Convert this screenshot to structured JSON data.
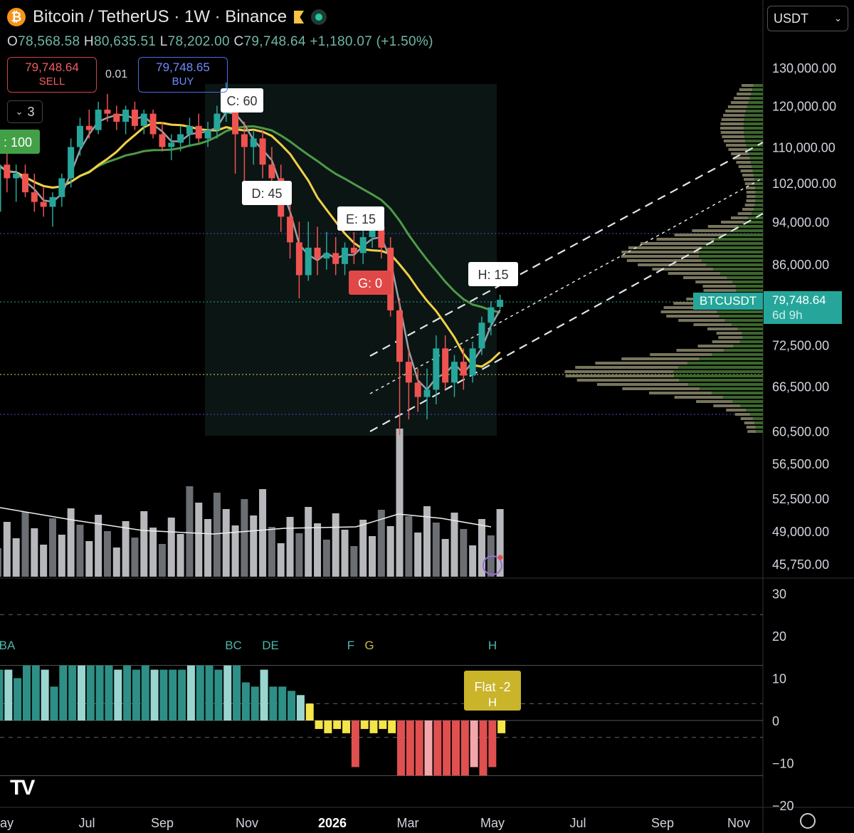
{
  "header": {
    "title": "Bitcoin / TetherUS · 1W · Binance",
    "coin_glyph": "₿",
    "ohlc": {
      "o_label": "O",
      "o": "78,568.58",
      "h_label": "H",
      "h": "80,635.51",
      "l_label": "L",
      "l": "78,202.00",
      "c_label": "C",
      "c": "79,748.64",
      "change": "+1,180.07 (+1.50%)"
    }
  },
  "trade": {
    "sell_price": "79,748.64",
    "sell_label": "SELL",
    "qty": "0.01",
    "buy_price": "79,748.65",
    "buy_label": "BUY"
  },
  "indicator_count": "3",
  "currency": "USDT",
  "symbol_tag": "BTCUSDT",
  "price_tag": {
    "price": "79,748.64",
    "countdown": "6d 9h"
  },
  "brand_logo": "TV",
  "colors": {
    "up": "#26a69a",
    "down": "#ef5350",
    "ma_fast": "#9aa0a6",
    "ma_yellow": "#f0d048",
    "ma_green": "#4e9a48",
    "accent": "#26a69a"
  },
  "chart_data": {
    "type": "candlestick",
    "interval": "1W",
    "currency": "USDT",
    "price_axis": {
      "scale": "log",
      "ticks": [
        130000,
        120000,
        110000,
        102000,
        94000,
        86000,
        79748.64,
        72500,
        66500,
        60500,
        56500,
        52500,
        49000,
        45750
      ],
      "tick_labels": [
        "130,000.00",
        "120,000.00",
        "110,000.00",
        "102,000.00",
        "94,000.00",
        "86,000.00",
        "79,748.64",
        "72,500.00",
        "66,500.00",
        "60,500.00",
        "56,500.00",
        "52,500.00",
        "49,000.00",
        "45,750.00"
      ]
    },
    "time_axis": {
      "labels": [
        "ay",
        "Jul",
        "Sep",
        "Nov",
        "2026",
        "Mar",
        "May",
        "Jul",
        "Sep",
        "Nov"
      ],
      "bold": [
        "2026"
      ]
    },
    "candles": [
      [
        96000,
        110000,
        93000,
        106000
      ],
      [
        106000,
        109000,
        100000,
        103000
      ],
      [
        103000,
        106000,
        98000,
        104000
      ],
      [
        104000,
        106000,
        99000,
        100000
      ],
      [
        100000,
        104000,
        96000,
        98000
      ],
      [
        98000,
        101000,
        95000,
        97000
      ],
      [
        97000,
        100000,
        93000,
        99000
      ],
      [
        99000,
        104000,
        97000,
        103000
      ],
      [
        103000,
        112000,
        101000,
        110000
      ],
      [
        110000,
        117000,
        108000,
        115000
      ],
      [
        115000,
        119000,
        112000,
        114000
      ],
      [
        114000,
        121000,
        113000,
        119000
      ],
      [
        119000,
        123000,
        116000,
        118000
      ],
      [
        118000,
        120000,
        114000,
        116000
      ],
      [
        116000,
        120000,
        113000,
        119000
      ],
      [
        119000,
        121000,
        114000,
        115000
      ],
      [
        115000,
        119000,
        113000,
        118000
      ],
      [
        118000,
        119000,
        112000,
        113000
      ],
      [
        113000,
        116000,
        109000,
        110000
      ],
      [
        110000,
        113000,
        107000,
        111000
      ],
      [
        111000,
        115000,
        109000,
        113000
      ],
      [
        113000,
        117000,
        110000,
        115000
      ],
      [
        115000,
        118000,
        111000,
        112000
      ],
      [
        112000,
        116000,
        110000,
        114000
      ],
      [
        114000,
        120000,
        112000,
        118000
      ],
      [
        118000,
        126000,
        116000,
        123000
      ],
      [
        123000,
        124000,
        104000,
        113000
      ],
      [
        113000,
        116000,
        101000,
        110000
      ],
      [
        110000,
        114000,
        106000,
        112000
      ],
      [
        112000,
        114000,
        103000,
        106000
      ],
      [
        106000,
        110000,
        99000,
        103000
      ],
      [
        103000,
        106000,
        92000,
        95000
      ],
      [
        95000,
        99000,
        87000,
        90000
      ],
      [
        90000,
        94000,
        80000,
        84000
      ],
      [
        84000,
        94000,
        83000,
        89000
      ],
      [
        89000,
        93000,
        84000,
        87000
      ],
      [
        87000,
        92000,
        85000,
        88000
      ],
      [
        88000,
        91000,
        84000,
        86000
      ],
      [
        86000,
        90000,
        84000,
        89000
      ],
      [
        89000,
        92000,
        86000,
        88000
      ],
      [
        88000,
        94000,
        86000,
        91000
      ],
      [
        91000,
        97000,
        89000,
        93000
      ],
      [
        93000,
        96000,
        87000,
        89000
      ],
      [
        89000,
        91000,
        77000,
        78000
      ],
      [
        78000,
        80000,
        60000,
        70000
      ],
      [
        70000,
        72000,
        62000,
        67000
      ],
      [
        67000,
        69000,
        63000,
        65000
      ],
      [
        65000,
        69000,
        62000,
        66000
      ],
      [
        66000,
        74000,
        64000,
        72000
      ],
      [
        72000,
        74000,
        66000,
        67000
      ],
      [
        67000,
        71000,
        65000,
        70000
      ],
      [
        70000,
        72000,
        66000,
        68000
      ],
      [
        68000,
        73000,
        67000,
        72000
      ],
      [
        72000,
        77000,
        71000,
        76000
      ],
      [
        76000,
        79500,
        74000,
        78500
      ],
      [
        78568.58,
        80635.51,
        78202,
        79748.64
      ]
    ],
    "annotations": [
      {
        "label": "C: 60"
      },
      {
        "label": "D: 45"
      },
      {
        "label": "E: 15"
      },
      {
        "label": "G: 0"
      },
      {
        "label": "H: 15"
      },
      {
        "label": ": 100"
      }
    ],
    "indicator": {
      "levels": [
        30,
        20,
        10,
        0,
        -10,
        -20
      ],
      "level_labels": [
        "30",
        "20",
        "10",
        "0",
        "−10",
        "−20"
      ],
      "markers": [
        "BA",
        "BC",
        "DE",
        "F",
        "G",
        "H"
      ],
      "callout": {
        "line1": "Flat -2",
        "line2": "H"
      }
    },
    "legend": "none"
  }
}
